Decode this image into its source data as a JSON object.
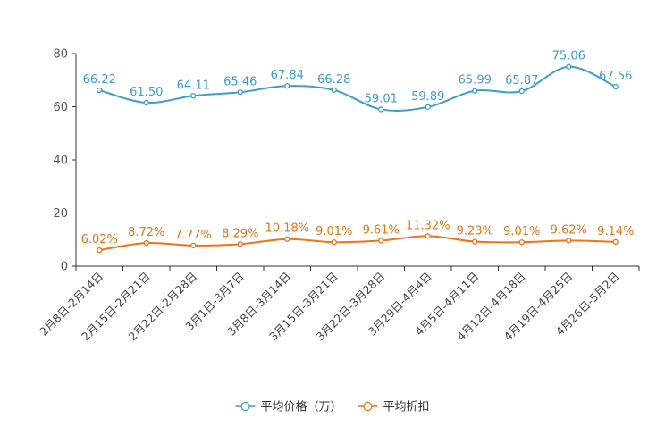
{
  "chart_data": {
    "type": "line",
    "categories": [
      "2月8日-2月14日",
      "2月15日-2月21日",
      "2月22日-2月28日",
      "3月1日-3月7日",
      "3月8日-3月14日",
      "3月15日-3月21日",
      "3月22日-3月28日",
      "3月29日-4月4日",
      "4月5日-4月11日",
      "4月12日-4月18日",
      "4月19日-4月25日",
      "4月26日-5月2日"
    ],
    "series": [
      {
        "name": "平均价格（万）",
        "color": "#3c9dd0",
        "values": [
          66.22,
          61.5,
          64.11,
          65.46,
          67.84,
          66.28,
          59.01,
          59.89,
          65.99,
          65.87,
          75.06,
          67.56
        ],
        "labels": [
          "66.22",
          "61.50",
          "64.11",
          "65.46",
          "67.84",
          "66.28",
          "59.01",
          "59.89",
          "65.99",
          "65.87",
          "75.06",
          "67.56"
        ]
      },
      {
        "name": "平均折扣",
        "color": "#f07214",
        "values": [
          6.02,
          8.72,
          7.77,
          8.29,
          10.18,
          9.01,
          9.61,
          11.32,
          9.23,
          9.01,
          9.62,
          9.14
        ],
        "labels": [
          "6.02%",
          "8.72%",
          "7.77%",
          "8.29%",
          "10.18%",
          "9.01%",
          "9.61%",
          "11.32%",
          "9.23%",
          "9.01%",
          "9.62%",
          "9.14%"
        ]
      }
    ],
    "yticks": [
      "0",
      "20",
      "40",
      "60",
      "80"
    ],
    "ylim": [
      0,
      80
    ],
    "xlabel": "",
    "ylabel": "",
    "legend_position": "bottom-center",
    "grid": false,
    "smooth": true
  }
}
